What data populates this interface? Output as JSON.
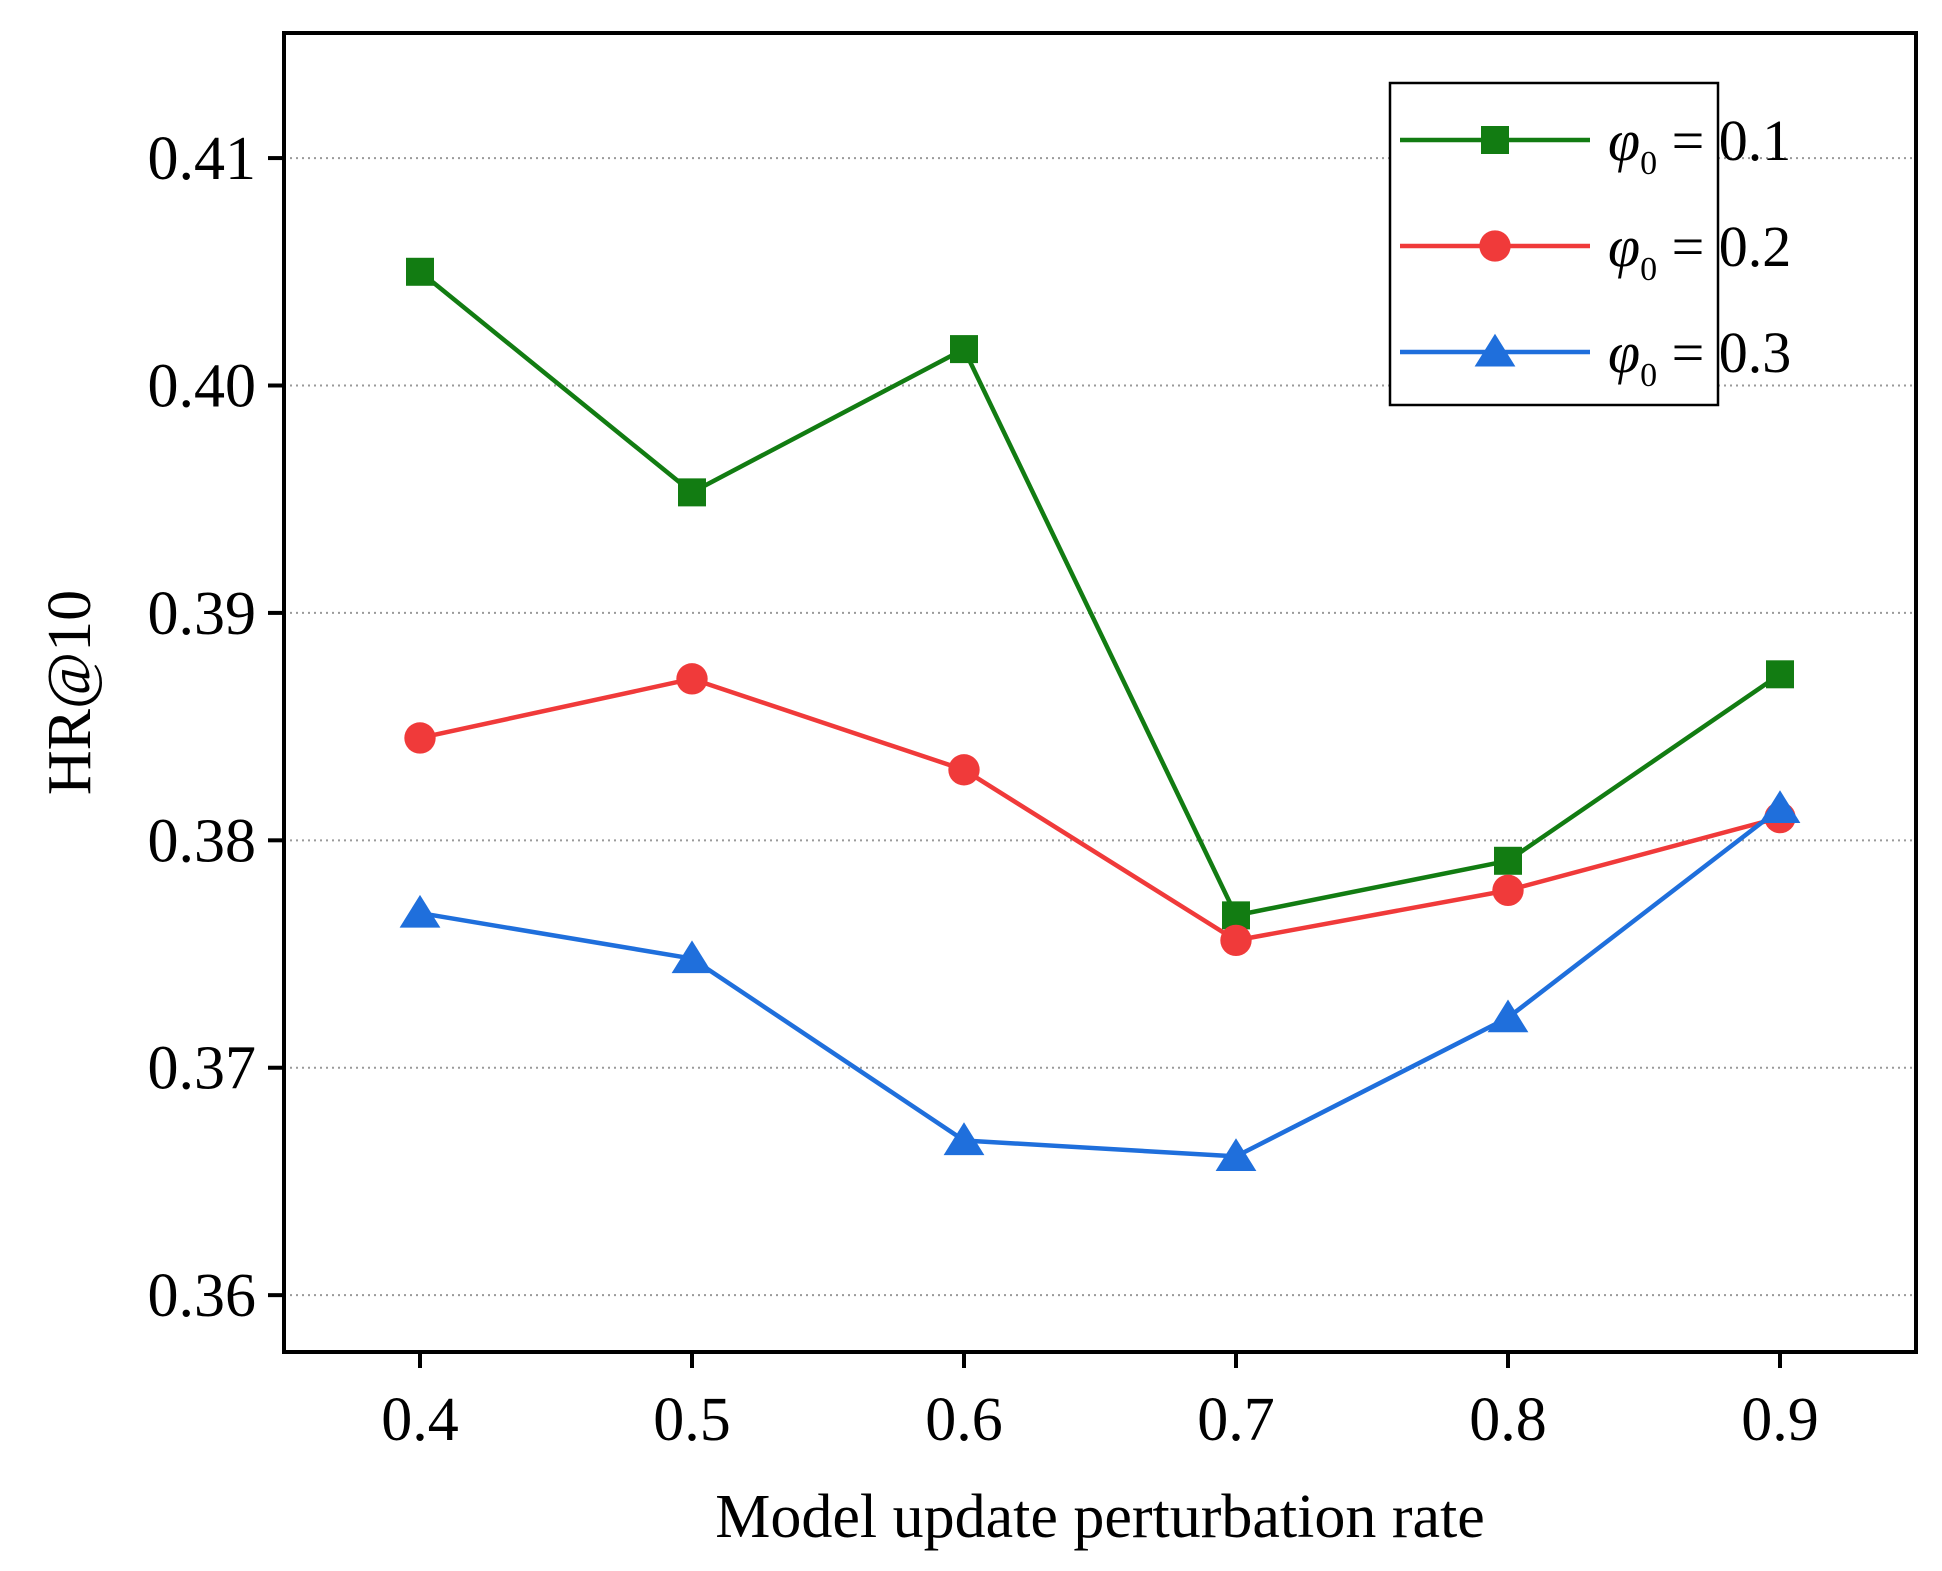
{
  "chart_data": {
    "type": "line",
    "title": "",
    "xlabel": "Model update perturbation rate",
    "ylabel": "HR@10",
    "x": [
      0.4,
      0.5,
      0.6,
      0.7,
      0.8,
      0.9
    ],
    "x_tick_labels": [
      "0.4",
      "0.5",
      "0.6",
      "0.7",
      "0.8",
      "0.9"
    ],
    "xlim": [
      0.35,
      0.95
    ],
    "y_ticks": [
      0.36,
      0.37,
      0.38,
      0.39,
      0.4,
      0.41
    ],
    "y_tick_labels": [
      "0.36",
      "0.37",
      "0.38",
      "0.39",
      "0.40",
      "0.41"
    ],
    "ylim": [
      0.3575,
      0.4155
    ],
    "grid": "horizontal dotted",
    "legend_position": "top-right",
    "series": [
      {
        "name": "φ0 = 0.1",
        "legend_var": "φ",
        "legend_sub": "0",
        "legend_rest": " = 0.1",
        "color": "#127c12",
        "marker": "square",
        "values": [
          0.405,
          0.3953,
          0.4016,
          0.3767,
          0.3791,
          0.3873
        ]
      },
      {
        "name": "φ0 = 0.2",
        "legend_var": "φ",
        "legend_sub": "0",
        "legend_rest": " = 0.2",
        "color": "#f03a3a",
        "marker": "circle",
        "values": [
          0.3845,
          0.3871,
          0.3831,
          0.3756,
          0.3778,
          0.381
        ]
      },
      {
        "name": "φ0 = 0.3",
        "legend_var": "φ",
        "legend_sub": "0",
        "legend_rest": " = 0.3",
        "color": "#1f6fdc",
        "marker": "triangle",
        "values": [
          0.3768,
          0.3748,
          0.3668,
          0.3661,
          0.3722,
          0.3814
        ]
      }
    ]
  }
}
